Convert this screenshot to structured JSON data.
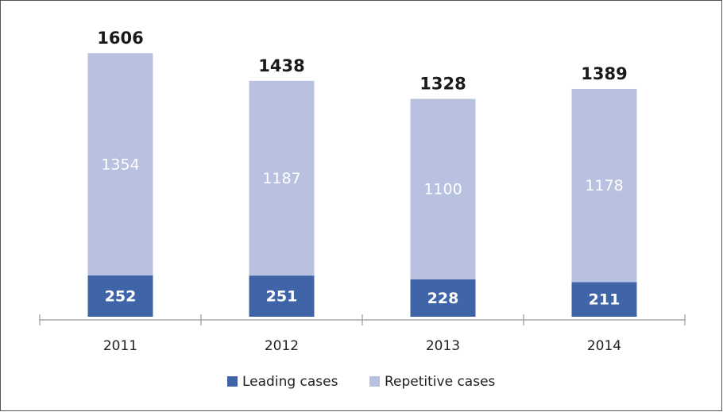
{
  "chart_data": {
    "type": "stacked_bar",
    "categories": [
      "2011",
      "2012",
      "2013",
      "2014"
    ],
    "series": [
      {
        "name": "Leading cases",
        "color": "#3f64a8",
        "values": [
          252,
          251,
          228,
          211
        ]
      },
      {
        "name": "Repetitive cases",
        "color": "#b8c2e0",
        "values": [
          1354,
          1187,
          1100,
          1178
        ]
      }
    ],
    "totals": [
      1606,
      1438,
      1328,
      1389
    ],
    "ylim": [
      0,
      1800
    ]
  }
}
